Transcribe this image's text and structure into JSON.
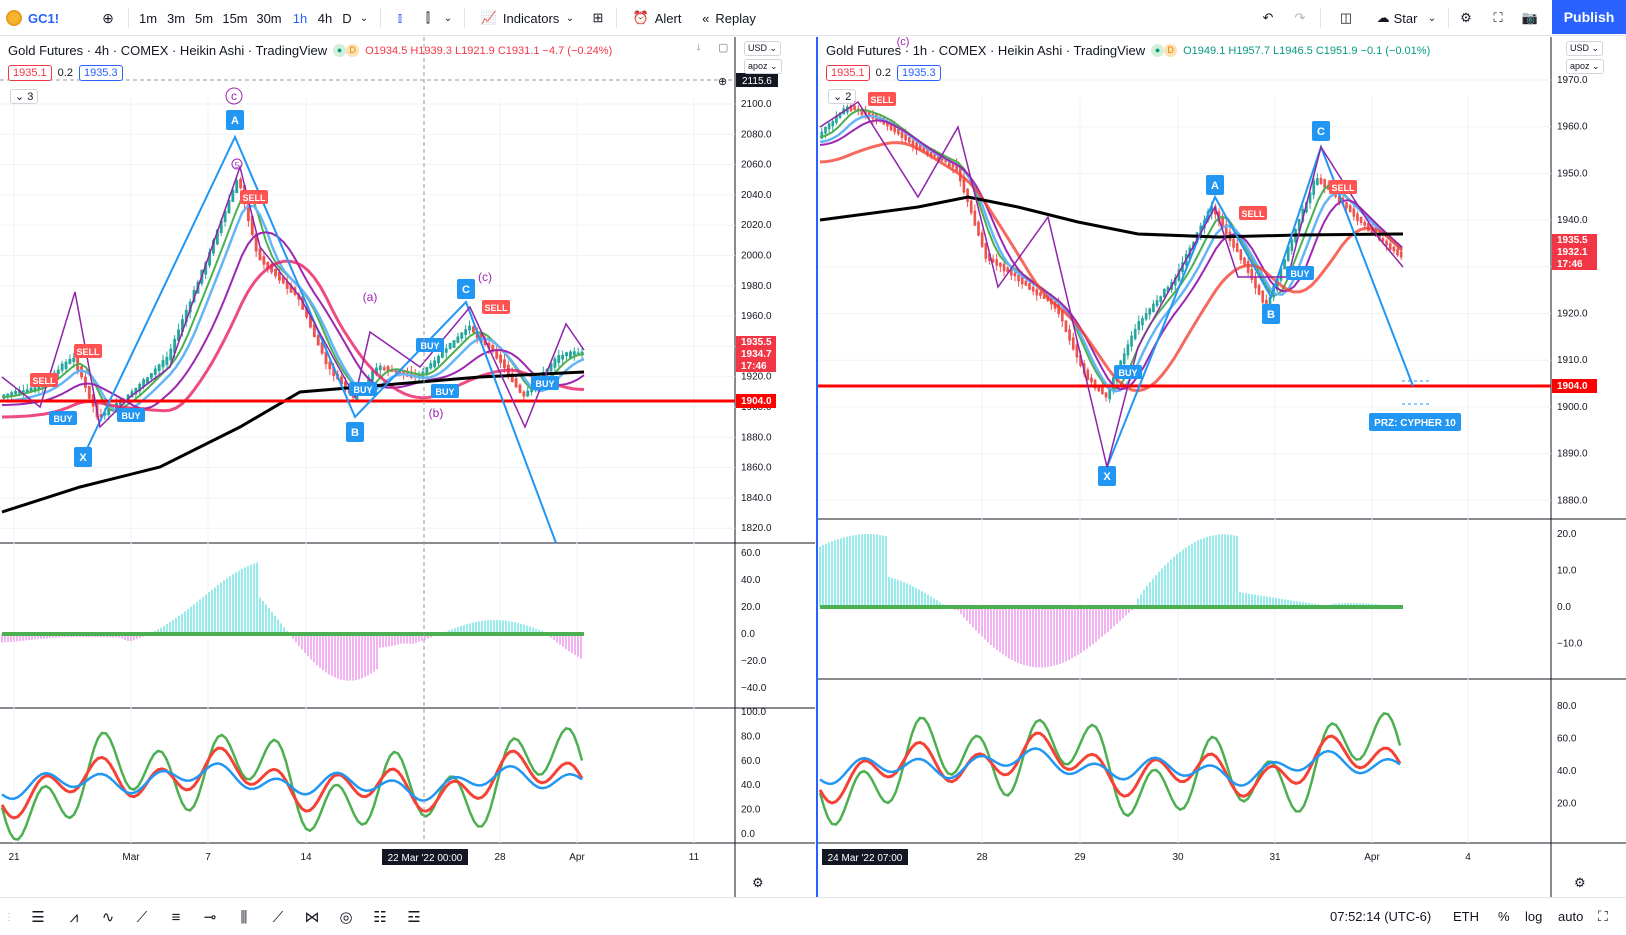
{
  "toolbar": {
    "symbol": "GC1!",
    "timeframes": [
      "1m",
      "3m",
      "5m",
      "15m",
      "30m",
      "1h",
      "4h",
      "D"
    ],
    "active_timeframe": "1h",
    "indicators_label": "Indicators",
    "alert_label": "Alert",
    "replay_label": "Replay",
    "star_label": "Star",
    "publish_label": "Publish"
  },
  "left_chart": {
    "title": "Gold Futures · 4h · COMEX · Heikin Ashi · TradingView",
    "ohlc": {
      "o": "O1934.5",
      "h": "H1939.3",
      "l": "L1921.9",
      "c": "C1931.1",
      "chg": "−4.7 (−0.24%)"
    },
    "bid": "1935.1",
    "spread": "0.2",
    "ask": "1935.3",
    "indicator_count": "3",
    "currency": "USD",
    "scale_mode": "apoz",
    "price_ticks": [
      "2100.0",
      "2080.0",
      "2060.0",
      "2040.0",
      "2020.0",
      "2000.0",
      "1980.0",
      "1960.0",
      "1940.0",
      "1920.0",
      "1900.0",
      "1880.0",
      "1860.0",
      "1840.0",
      "1820.0"
    ],
    "crosshair_price": "2115.6",
    "last_prices": [
      "1935.5",
      "1934.7",
      "17:46"
    ],
    "hline_price": "1904.0",
    "osc1_ticks": [
      "60.0",
      "40.0",
      "20.0",
      "0.0",
      "−20.0",
      "−40.0"
    ],
    "osc2_ticks": [
      "100.0",
      "80.0",
      "60.0",
      "40.0",
      "20.0",
      "0.0"
    ],
    "time_ticks": [
      "21",
      "Mar",
      "7",
      "14",
      "28",
      "Apr",
      "11"
    ],
    "crosshair_time": "22 Mar '22   00:00",
    "pattern_labels": [
      "X",
      "A",
      "B",
      "C"
    ],
    "wave_labels": [
      "(a)",
      "(b)",
      "(c)",
      "c",
      "5"
    ],
    "signal_labels": [
      "SELL",
      "SELL",
      "BUY",
      "BUY",
      "SELL",
      "BUY",
      "BUY",
      "BUY",
      "BUY",
      "SELL"
    ]
  },
  "right_chart": {
    "title": "Gold Futures · 1h · COMEX · Heikin Ashi · TradingView",
    "ohlc": {
      "o": "O1949.1",
      "h": "H1957.7",
      "l": "L1946.5",
      "c": "C1951.9",
      "chg": "−0.1 (−0.01%)"
    },
    "bid": "1935.1",
    "spread": "0.2",
    "ask": "1935.3",
    "indicator_count": "2",
    "currency": "USD",
    "scale_mode": "apoz",
    "price_ticks": [
      "1970.0",
      "1960.0",
      "1950.0",
      "1940.0",
      "1930.0",
      "1920.0",
      "1910.0",
      "1900.0",
      "1890.0",
      "1880.0"
    ],
    "last_prices": [
      "1935.5",
      "1932.1",
      "17:46"
    ],
    "hline_price": "1904.0",
    "osc1_ticks": [
      "20.0",
      "10.0",
      "0.0",
      "−10.0"
    ],
    "osc2_ticks": [
      "80.0",
      "60.0",
      "40.0",
      "20.0"
    ],
    "time_ticks": [
      "28",
      "29",
      "30",
      "31",
      "Apr",
      "4"
    ],
    "crosshair_time": "24 Mar '22   07:00",
    "pattern_labels": [
      "X",
      "A",
      "B",
      "C"
    ],
    "prz_label": "PRZ: CYPHER 10",
    "wave_label": "(c)",
    "signal_labels": [
      "SELL",
      "BUY",
      "SELL",
      "BUY",
      "SELL"
    ]
  },
  "bottombar": {
    "time": "07:52:14 (UTC-6)",
    "session": "ETH",
    "percent": "%",
    "log": "log",
    "auto": "auto"
  },
  "colors": {
    "accent": "#2962ff",
    "up": "#089981",
    "down": "#f23645",
    "hist_up": "#7ee6e6",
    "hist_down": "#f0a0f0"
  }
}
